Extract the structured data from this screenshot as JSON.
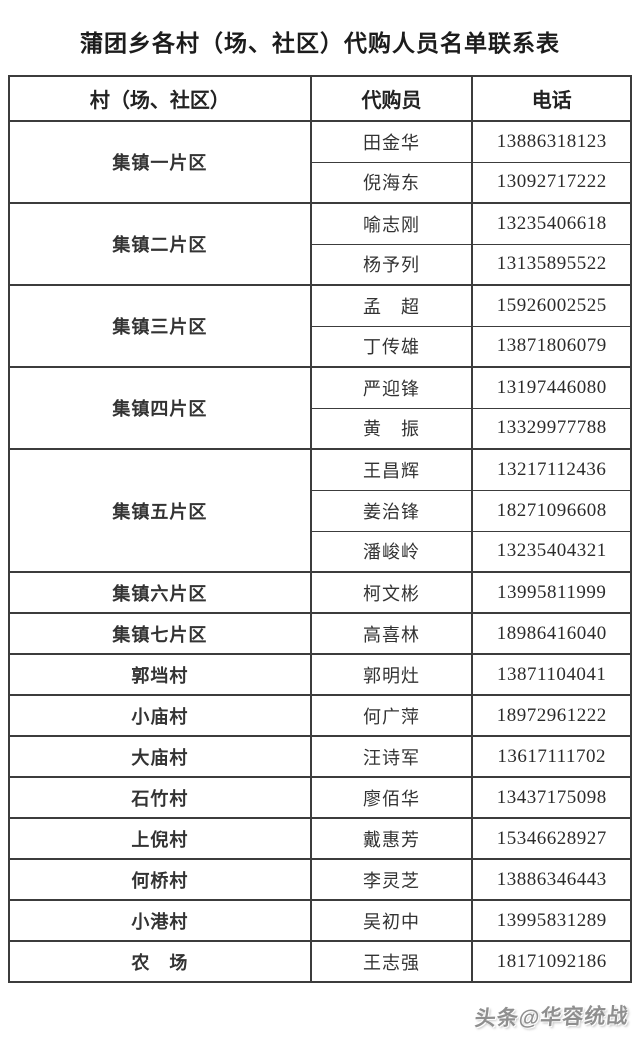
{
  "page": {
    "title": "蒲团乡各村（场、社区）代购人员名单联系表",
    "watermark": "头条@华容统战"
  },
  "table": {
    "headers": [
      "村（场、社区）",
      "代购员",
      "电话"
    ],
    "groups": [
      {
        "village": "集镇一片区",
        "agents": [
          {
            "name": "田金华",
            "phone": "13886318123"
          },
          {
            "name": "倪海东",
            "phone": "13092717222"
          }
        ]
      },
      {
        "village": "集镇二片区",
        "agents": [
          {
            "name": "喻志刚",
            "phone": "13235406618"
          },
          {
            "name": "杨予列",
            "phone": "13135895522"
          }
        ]
      },
      {
        "village": "集镇三片区",
        "agents": [
          {
            "name": "孟　超",
            "phone": "15926002525"
          },
          {
            "name": "丁传雄",
            "phone": "13871806079"
          }
        ]
      },
      {
        "village": "集镇四片区",
        "agents": [
          {
            "name": "严迎锋",
            "phone": "13197446080"
          },
          {
            "name": "黄　振",
            "phone": "13329977788"
          }
        ]
      },
      {
        "village": "集镇五片区",
        "agents": [
          {
            "name": "王昌辉",
            "phone": "13217112436"
          },
          {
            "name": "姜治锋",
            "phone": "18271096608"
          },
          {
            "name": "潘峻岭",
            "phone": "13235404321"
          }
        ]
      },
      {
        "village": "集镇六片区",
        "agents": [
          {
            "name": "柯文彬",
            "phone": "13995811999"
          }
        ]
      },
      {
        "village": "集镇七片区",
        "agents": [
          {
            "name": "高喜林",
            "phone": "18986416040"
          }
        ]
      },
      {
        "village": "郭垱村",
        "agents": [
          {
            "name": "郭明灶",
            "phone": "13871104041"
          }
        ]
      },
      {
        "village": "小庙村",
        "agents": [
          {
            "name": "何广萍",
            "phone": "18972961222"
          }
        ]
      },
      {
        "village": "大庙村",
        "agents": [
          {
            "name": "汪诗军",
            "phone": "13617111702"
          }
        ]
      },
      {
        "village": "石竹村",
        "agents": [
          {
            "name": "廖佰华",
            "phone": "13437175098"
          }
        ]
      },
      {
        "village": "上倪村",
        "agents": [
          {
            "name": "戴惠芳",
            "phone": "15346628927"
          }
        ]
      },
      {
        "village": "何桥村",
        "agents": [
          {
            "name": "李灵芝",
            "phone": "13886346443"
          }
        ]
      },
      {
        "village": "小港村",
        "agents": [
          {
            "name": "吴初中",
            "phone": "13995831289"
          }
        ]
      },
      {
        "village": "农　场",
        "agents": [
          {
            "name": "王志强",
            "phone": "18171092186"
          }
        ]
      }
    ]
  }
}
